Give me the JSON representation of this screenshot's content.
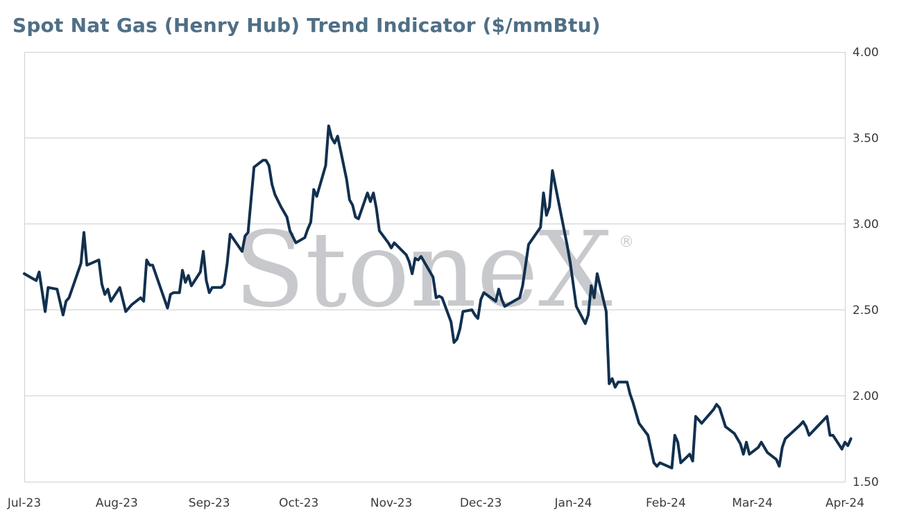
{
  "chart_data": {
    "type": "line",
    "title": "Spot Nat Gas (Henry Hub) Trend Indicator ($/mmBtu)",
    "xlabel": "",
    "ylabel": "",
    "ylim": [
      1.5,
      4.0
    ],
    "y_ticks": [
      "1.50",
      "2.00",
      "2.50",
      "3.00",
      "3.50",
      "4.00"
    ],
    "y_tick_values": [
      1.5,
      2.0,
      2.5,
      3.0,
      3.5,
      4.0
    ],
    "y_axis_side": "right",
    "grid": true,
    "x_domain": [
      "2023-07-01",
      "2024-04-01"
    ],
    "x_ticks": [
      {
        "date": "2023-07-01",
        "label": "Jul-23"
      },
      {
        "date": "2023-08-01",
        "label": "Aug-23"
      },
      {
        "date": "2023-09-01",
        "label": "Sep-23"
      },
      {
        "date": "2023-10-01",
        "label": "Oct-23"
      },
      {
        "date": "2023-11-01",
        "label": "Nov-23"
      },
      {
        "date": "2023-12-01",
        "label": "Dec-23"
      },
      {
        "date": "2024-01-01",
        "label": "Jan-24"
      },
      {
        "date": "2024-02-01",
        "label": "Feb-24"
      },
      {
        "date": "2024-03-01",
        "label": "Mar-24"
      },
      {
        "date": "2024-04-01",
        "label": "Apr-24"
      }
    ],
    "series": [
      {
        "color": "#12304f",
        "points": [
          [
            "2023-07-01",
            2.71
          ],
          [
            "2023-07-03",
            2.69
          ],
          [
            "2023-07-05",
            2.67
          ],
          [
            "2023-07-06",
            2.72
          ],
          [
            "2023-07-08",
            2.49
          ],
          [
            "2023-07-09",
            2.63
          ],
          [
            "2023-07-12",
            2.62
          ],
          [
            "2023-07-14",
            2.47
          ],
          [
            "2023-07-15",
            2.55
          ],
          [
            "2023-07-16",
            2.57
          ],
          [
            "2023-07-20",
            2.77
          ],
          [
            "2023-07-21",
            2.95
          ],
          [
            "2023-07-22",
            2.76
          ],
          [
            "2023-07-26",
            2.79
          ],
          [
            "2023-07-27",
            2.65
          ],
          [
            "2023-07-28",
            2.59
          ],
          [
            "2023-07-29",
            2.62
          ],
          [
            "2023-07-30",
            2.55
          ],
          [
            "2023-08-02",
            2.63
          ],
          [
            "2023-08-04",
            2.49
          ],
          [
            "2023-08-06",
            2.53
          ],
          [
            "2023-08-09",
            2.57
          ],
          [
            "2023-08-10",
            2.55
          ],
          [
            "2023-08-11",
            2.79
          ],
          [
            "2023-08-12",
            2.76
          ],
          [
            "2023-08-13",
            2.76
          ],
          [
            "2023-08-18",
            2.51
          ],
          [
            "2023-08-19",
            2.59
          ],
          [
            "2023-08-20",
            2.6
          ],
          [
            "2023-08-22",
            2.6
          ],
          [
            "2023-08-23",
            2.73
          ],
          [
            "2023-08-24",
            2.66
          ],
          [
            "2023-08-25",
            2.7
          ],
          [
            "2023-08-26",
            2.64
          ],
          [
            "2023-08-29",
            2.72
          ],
          [
            "2023-08-30",
            2.84
          ],
          [
            "2023-08-31",
            2.67
          ],
          [
            "2023-09-01",
            2.6
          ],
          [
            "2023-09-02",
            2.63
          ],
          [
            "2023-09-05",
            2.63
          ],
          [
            "2023-09-06",
            2.65
          ],
          [
            "2023-09-07",
            2.77
          ],
          [
            "2023-09-08",
            2.94
          ],
          [
            "2023-09-12",
            2.84
          ],
          [
            "2023-09-13",
            2.93
          ],
          [
            "2023-09-14",
            2.95
          ],
          [
            "2023-09-16",
            3.33
          ],
          [
            "2023-09-19",
            3.37
          ],
          [
            "2023-09-20",
            3.37
          ],
          [
            "2023-09-21",
            3.34
          ],
          [
            "2023-09-22",
            3.23
          ],
          [
            "2023-09-23",
            3.17
          ],
          [
            "2023-09-25",
            3.1
          ],
          [
            "2023-09-27",
            3.04
          ],
          [
            "2023-09-28",
            2.96
          ],
          [
            "2023-09-30",
            2.89
          ],
          [
            "2023-10-03",
            2.92
          ],
          [
            "2023-10-04",
            2.97
          ],
          [
            "2023-10-05",
            3.01
          ],
          [
            "2023-10-06",
            3.2
          ],
          [
            "2023-10-07",
            3.16
          ],
          [
            "2023-10-10",
            3.34
          ],
          [
            "2023-10-11",
            3.57
          ],
          [
            "2023-10-12",
            3.5
          ],
          [
            "2023-10-13",
            3.47
          ],
          [
            "2023-10-14",
            3.51
          ],
          [
            "2023-10-17",
            3.26
          ],
          [
            "2023-10-18",
            3.14
          ],
          [
            "2023-10-19",
            3.11
          ],
          [
            "2023-10-20",
            3.04
          ],
          [
            "2023-10-21",
            3.03
          ],
          [
            "2023-10-24",
            3.18
          ],
          [
            "2023-10-25",
            3.13
          ],
          [
            "2023-10-26",
            3.18
          ],
          [
            "2023-10-27",
            3.09
          ],
          [
            "2023-10-28",
            2.96
          ],
          [
            "2023-10-31",
            2.89
          ],
          [
            "2023-11-01",
            2.86
          ],
          [
            "2023-11-02",
            2.89
          ],
          [
            "2023-11-06",
            2.82
          ],
          [
            "2023-11-07",
            2.78
          ],
          [
            "2023-11-08",
            2.71
          ],
          [
            "2023-11-09",
            2.8
          ],
          [
            "2023-11-10",
            2.79
          ],
          [
            "2023-11-11",
            2.81
          ],
          [
            "2023-11-15",
            2.69
          ],
          [
            "2023-11-16",
            2.57
          ],
          [
            "2023-11-17",
            2.58
          ],
          [
            "2023-11-18",
            2.57
          ],
          [
            "2023-11-21",
            2.43
          ],
          [
            "2023-11-22",
            2.31
          ],
          [
            "2023-11-23",
            2.33
          ],
          [
            "2023-11-24",
            2.39
          ],
          [
            "2023-11-25",
            2.49
          ],
          [
            "2023-11-28",
            2.5
          ],
          [
            "2023-11-29",
            2.47
          ],
          [
            "2023-11-30",
            2.45
          ],
          [
            "2023-12-01",
            2.56
          ],
          [
            "2023-12-02",
            2.6
          ],
          [
            "2023-12-06",
            2.55
          ],
          [
            "2023-12-07",
            2.62
          ],
          [
            "2023-12-08",
            2.56
          ],
          [
            "2023-12-09",
            2.52
          ],
          [
            "2023-12-14",
            2.57
          ],
          [
            "2023-12-15",
            2.64
          ],
          [
            "2023-12-17",
            2.88
          ],
          [
            "2023-12-21",
            2.98
          ],
          [
            "2023-12-22",
            3.18
          ],
          [
            "2023-12-23",
            3.05
          ],
          [
            "2023-12-24",
            3.1
          ],
          [
            "2023-12-25",
            3.31
          ],
          [
            "2023-12-26",
            3.22
          ],
          [
            "2023-12-30",
            2.87
          ],
          [
            "2023-12-31",
            2.77
          ],
          [
            "2024-01-02",
            2.52
          ],
          [
            "2024-01-05",
            2.42
          ],
          [
            "2024-01-06",
            2.47
          ],
          [
            "2024-01-07",
            2.64
          ],
          [
            "2024-01-08",
            2.57
          ],
          [
            "2024-01-09",
            2.71
          ],
          [
            "2024-01-12",
            2.49
          ],
          [
            "2024-01-13",
            2.07
          ],
          [
            "2024-01-14",
            2.1
          ],
          [
            "2024-01-15",
            2.05
          ],
          [
            "2024-01-16",
            2.08
          ],
          [
            "2024-01-19",
            2.08
          ],
          [
            "2024-01-20",
            2.01
          ],
          [
            "2024-01-21",
            1.96
          ],
          [
            "2024-01-23",
            1.84
          ],
          [
            "2024-01-26",
            1.77
          ],
          [
            "2024-01-28",
            1.61
          ],
          [
            "2024-01-29",
            1.59
          ],
          [
            "2024-01-30",
            1.61
          ],
          [
            "2024-02-03",
            1.58
          ],
          [
            "2024-02-04",
            1.77
          ],
          [
            "2024-02-05",
            1.73
          ],
          [
            "2024-02-06",
            1.61
          ],
          [
            "2024-02-09",
            1.66
          ],
          [
            "2024-02-10",
            1.62
          ],
          [
            "2024-02-11",
            1.88
          ],
          [
            "2024-02-13",
            1.84
          ],
          [
            "2024-02-17",
            1.92
          ],
          [
            "2024-02-18",
            1.95
          ],
          [
            "2024-02-19",
            1.93
          ],
          [
            "2024-02-21",
            1.82
          ],
          [
            "2024-02-24",
            1.78
          ],
          [
            "2024-02-26",
            1.72
          ],
          [
            "2024-02-27",
            1.66
          ],
          [
            "2024-02-28",
            1.73
          ],
          [
            "2024-02-29",
            1.66
          ],
          [
            "2024-03-03",
            1.7
          ],
          [
            "2024-03-04",
            1.73
          ],
          [
            "2024-03-05",
            1.7
          ],
          [
            "2024-03-06",
            1.67
          ],
          [
            "2024-03-09",
            1.63
          ],
          [
            "2024-03-10",
            1.59
          ],
          [
            "2024-03-11",
            1.7
          ],
          [
            "2024-03-12",
            1.75
          ],
          [
            "2024-03-17",
            1.83
          ],
          [
            "2024-03-18",
            1.85
          ],
          [
            "2024-03-19",
            1.82
          ],
          [
            "2024-03-20",
            1.77
          ],
          [
            "2024-03-26",
            1.88
          ],
          [
            "2024-03-27",
            1.77
          ],
          [
            "2024-03-28",
            1.77
          ],
          [
            "2024-03-31",
            1.69
          ],
          [
            "2024-04-01",
            1.73
          ],
          [
            "2024-04-02",
            1.71
          ],
          [
            "2024-04-03",
            1.75
          ]
        ]
      }
    ]
  },
  "watermark": {
    "text": "StoneX",
    "mark": "®",
    "color": "#c7c9cc"
  }
}
